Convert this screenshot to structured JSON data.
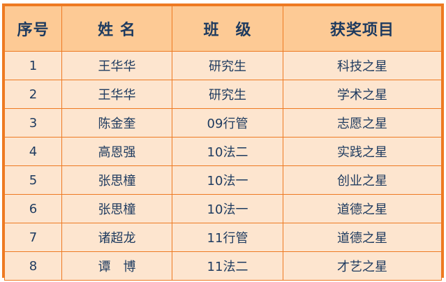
{
  "table": {
    "headers": [
      "序号",
      "姓 名",
      "班　级",
      "获奖项目"
    ],
    "rows": [
      [
        "1",
        "王华华",
        "研究生",
        "科技之星"
      ],
      [
        "2",
        "王华华",
        "研究生",
        "学术之星"
      ],
      [
        "3",
        "陈金奎",
        "09行管",
        "志愿之星"
      ],
      [
        "4",
        "高恩强",
        "10法二",
        "实践之星"
      ],
      [
        "5",
        "张思橦",
        "10法一",
        "创业之星"
      ],
      [
        "6",
        "张思橦",
        "10法一",
        "道德之星"
      ],
      [
        "7",
        "诸超龙",
        "11行管",
        "道德之星"
      ],
      [
        "8",
        "谭　博",
        "11法二",
        "才艺之星"
      ]
    ]
  },
  "colors": {
    "border": "#ee7a22",
    "header_bg": "#fdca95",
    "row_bg": "#fde5cf",
    "text": "#1d3a5f"
  }
}
